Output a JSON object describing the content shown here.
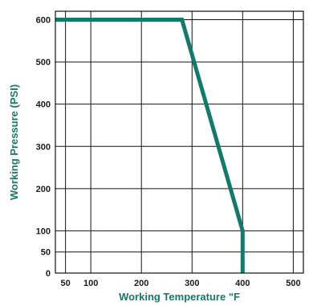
{
  "chart_data": {
    "type": "line",
    "xlabel": "Working Temperature ʺF",
    "ylabel": "Working Pressure (PSI)",
    "xlim": [
      30,
      520
    ],
    "ylim": [
      0,
      620
    ],
    "x_ticks": [
      50,
      100,
      200,
      300,
      400,
      500
    ],
    "y_ticks": [
      0,
      50,
      100,
      200,
      300,
      400,
      500,
      600
    ],
    "grid": true,
    "series": [
      {
        "x": [
          30,
          280,
          400,
          400
        ],
        "y": [
          600,
          600,
          100,
          0
        ]
      }
    ],
    "colors": {
      "line": "#13796b",
      "axis_title": "#13796b",
      "grid": "#111111",
      "tick_text": "#1a1a1a"
    }
  }
}
